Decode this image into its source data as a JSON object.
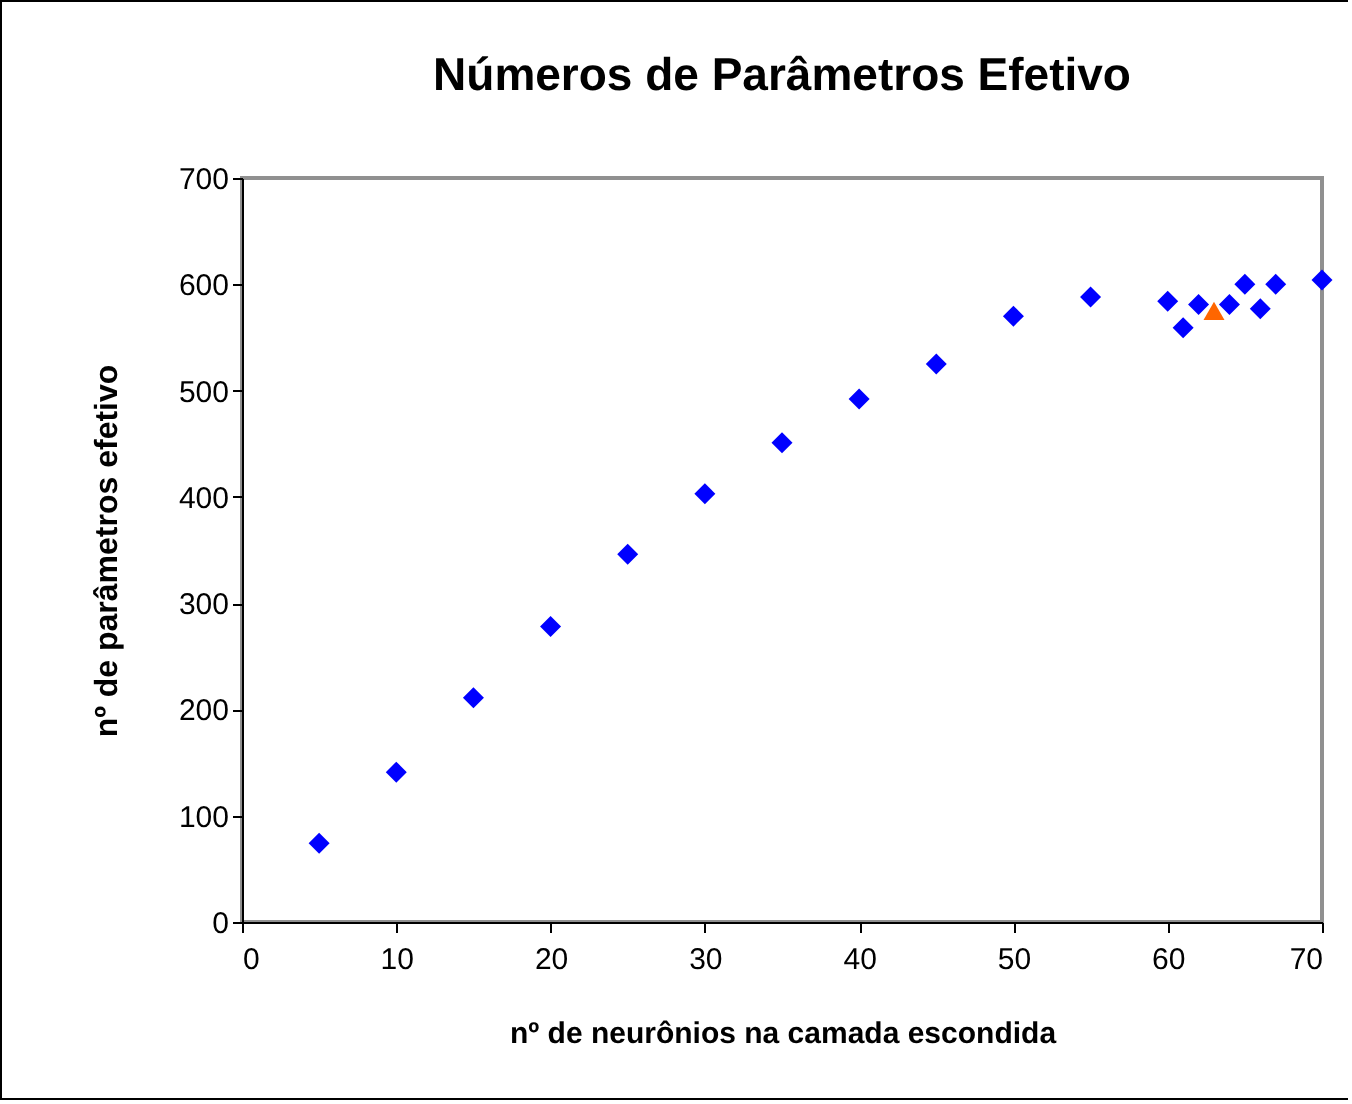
{
  "chart_data": {
    "type": "scatter",
    "title": "Números de Parâmetros Efetivo",
    "xlabel": "nº de neurônios na camada escondida",
    "ylabel": "nº de parâmetros efetivo",
    "xlim": [
      0,
      70
    ],
    "xticks": [
      0,
      10,
      20,
      30,
      40,
      50,
      60,
      70
    ],
    "ylim": [
      0,
      700
    ],
    "yticks": [
      0,
      100,
      200,
      300,
      400,
      500,
      600,
      700
    ],
    "grid": false,
    "series": [
      {
        "color": "#0000ff",
        "marker": "diamond",
        "x": [
          5,
          10,
          15,
          20,
          25,
          30,
          35,
          40,
          45,
          50,
          55,
          60,
          61,
          62,
          64,
          65,
          66,
          67,
          70
        ],
        "values": [
          74,
          141,
          211,
          278,
          346,
          403,
          451,
          492,
          525,
          570,
          588,
          584,
          559,
          581,
          581,
          600,
          577,
          600,
          604
        ]
      },
      {
        "color": "#ff6600",
        "marker": "triangle",
        "x": [
          63
        ],
        "values": [
          575
        ]
      }
    ]
  }
}
